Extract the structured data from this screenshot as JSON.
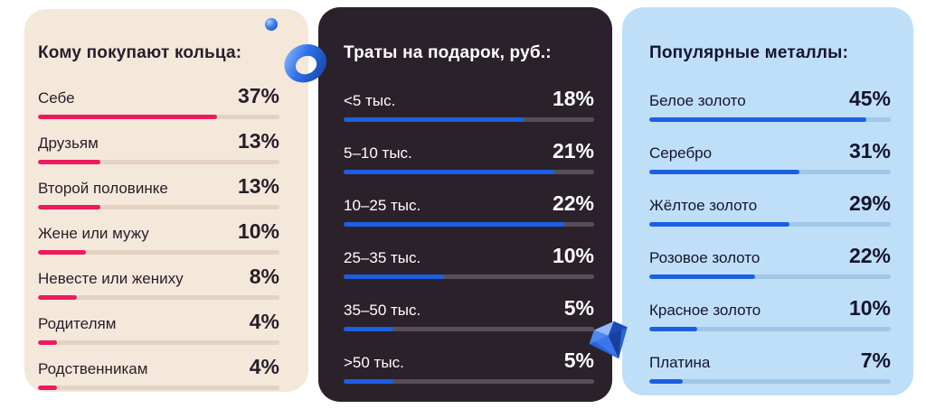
{
  "colors": {
    "page_bg": "#ffffff",
    "left_panel_bg": "#f4e8da",
    "mid_panel_bg": "#2a212b",
    "right_panel_bg": "#bfdff8",
    "left_text": "#271e2b",
    "mid_text": "#ffffff",
    "right_text": "#16142e",
    "left_bar_fill": "#ed1a5e",
    "left_bar_track": "#e5d2c3",
    "blue_bar_fill": "#1c5fe4",
    "mid_bar_track": "#574f58",
    "right_bar_track": "#a0c6e8"
  },
  "panels": [
    {
      "id": "ring-recipients",
      "title": "Кому покупают кольца:",
      "bar_scale": 2,
      "items": [
        {
          "label": "Себе",
          "value": "37%"
        },
        {
          "label": "Друзьям",
          "value": "13%"
        },
        {
          "label": "Второй половинке",
          "value": "13%"
        },
        {
          "label": "Жене или мужу",
          "value": "10%"
        },
        {
          "label": "Невесте или жениху",
          "value": "8%"
        },
        {
          "label": "Родителям",
          "value": "4%"
        },
        {
          "label": "Родственникам",
          "value": "4%"
        }
      ]
    },
    {
      "id": "gift-spending",
      "title": "Траты на подарок, руб.:",
      "bar_scale": 4,
      "items": [
        {
          "label": "<5 тыс.",
          "value": "18%"
        },
        {
          "label": "5–10 тыс.",
          "value": "21%"
        },
        {
          "label": "10–25 тыс.",
          "value": "22%"
        },
        {
          "label": "25–35 тыс.",
          "value": "10%"
        },
        {
          "label": "35–50 тыс.",
          "value": "5%"
        },
        {
          "label": ">50 тыс.",
          "value": "5%"
        }
      ]
    },
    {
      "id": "popular-metals",
      "title": "Популярные металлы:",
      "bar_scale": 2,
      "items": [
        {
          "label": "Белое золото",
          "value": "45%"
        },
        {
          "label": "Серебро",
          "value": "31%"
        },
        {
          "label": "Жёлтое золото",
          "value": "29%"
        },
        {
          "label": "Розовое золото",
          "value": "22%"
        },
        {
          "label": "Красное золото",
          "value": "10%"
        },
        {
          "label": "Платина",
          "value": "7%"
        }
      ]
    }
  ],
  "decorations": {
    "sphere": "blue-sphere",
    "ring": "blue-3d-ring",
    "diamond": "blue-diamond"
  },
  "chart_data": [
    {
      "type": "bar",
      "orientation": "horizontal",
      "title": "Кому покупают кольца:",
      "categories": [
        "Себе",
        "Друзьям",
        "Второй половинке",
        "Жене или мужу",
        "Невесте или жениху",
        "Родителям",
        "Родственникам"
      ],
      "values": [
        37,
        13,
        13,
        10,
        8,
        4,
        4
      ],
      "unit": "%",
      "xlim": [
        0,
        50
      ],
      "bar_color": "#ed1a5e",
      "legend": "off",
      "grid": "off"
    },
    {
      "type": "bar",
      "orientation": "horizontal",
      "title": "Траты на подарок, руб.:",
      "categories": [
        "<5 тыс.",
        "5–10 тыс.",
        "10–25 тыс.",
        "25–35 тыс.",
        "35–50 тыс.",
        ">50 тыс."
      ],
      "values": [
        18,
        21,
        22,
        10,
        5,
        5
      ],
      "unit": "%",
      "xlim": [
        0,
        25
      ],
      "bar_color": "#1c5fe4",
      "legend": "off",
      "grid": "off"
    },
    {
      "type": "bar",
      "orientation": "horizontal",
      "title": "Популярные металлы:",
      "categories": [
        "Белое золото",
        "Серебро",
        "Жёлтое золото",
        "Розовое золото",
        "Красное золото",
        "Платина"
      ],
      "values": [
        45,
        31,
        29,
        22,
        10,
        7
      ],
      "unit": "%",
      "xlim": [
        0,
        50
      ],
      "bar_color": "#1c5fe4",
      "legend": "off",
      "grid": "off"
    }
  ]
}
